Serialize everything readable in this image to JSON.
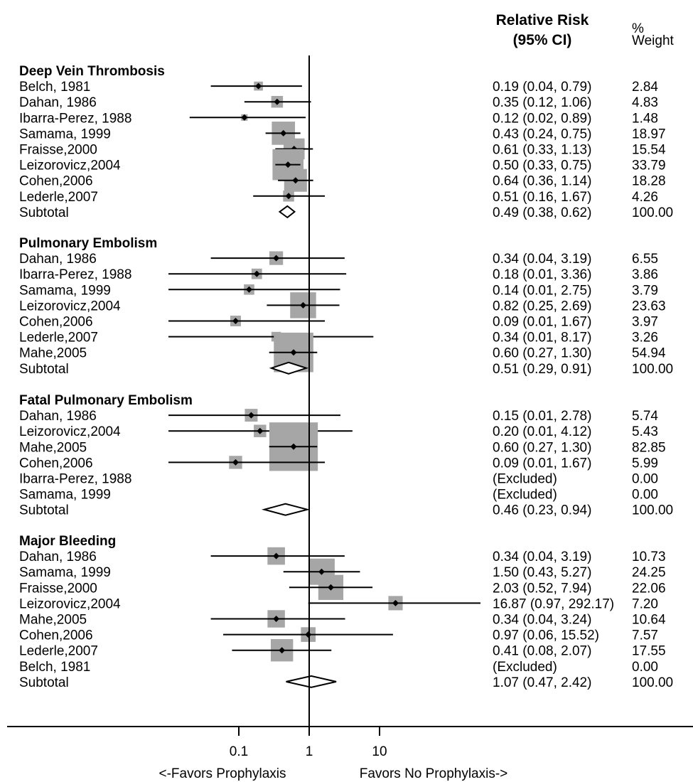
{
  "chart_data": {
    "type": "forest",
    "header": {
      "rr_line1": "Relative Risk",
      "rr_line2": "(95% CI)",
      "weight_line1": "%",
      "weight_line2": "Weight"
    },
    "x_axis": {
      "scale": "log",
      "range": [
        0.0167,
        19
      ],
      "ticks": [
        0.1,
        1,
        10
      ],
      "tick_labels": [
        "0.1",
        "1",
        "10"
      ],
      "reference_line": 1,
      "left_caption": "<-Favors Prophylaxis",
      "right_caption": "Favors No Prophylaxis->"
    },
    "groups": [
      {
        "title": "Deep Vein Thrombosis",
        "rows": [
          {
            "label": "Belch, 1981",
            "rr": 0.19,
            "lo": 0.04,
            "hi": 0.79,
            "ci_text": "0.19 (0.04, 0.79)",
            "weight": 2.84,
            "weight_text": "2.84"
          },
          {
            "label": "Dahan, 1986",
            "rr": 0.35,
            "lo": 0.12,
            "hi": 1.06,
            "ci_text": "0.35 (0.12, 1.06)",
            "weight": 4.83,
            "weight_text": "4.83"
          },
          {
            "label": "Ibarra-Perez, 1988",
            "rr": 0.12,
            "lo": 0.02,
            "hi": 0.89,
            "ci_text": "0.12 (0.02, 0.89)",
            "weight": 1.48,
            "weight_text": "1.48"
          },
          {
            "label": "Samama, 1999",
            "rr": 0.43,
            "lo": 0.24,
            "hi": 0.75,
            "ci_text": "0.43 (0.24, 0.75)",
            "weight": 18.97,
            "weight_text": "18.97"
          },
          {
            "label": "Fraisse,2000",
            "rr": 0.61,
            "lo": 0.33,
            "hi": 1.13,
            "ci_text": "0.61 (0.33, 1.13)",
            "weight": 15.54,
            "weight_text": "15.54"
          },
          {
            "label": "Leizorovicz,2004",
            "rr": 0.5,
            "lo": 0.33,
            "hi": 0.75,
            "ci_text": "0.50 (0.33, 0.75)",
            "weight": 33.79,
            "weight_text": "33.79"
          },
          {
            "label": "Cohen,2006",
            "rr": 0.64,
            "lo": 0.36,
            "hi": 1.14,
            "ci_text": "0.64 (0.36, 1.14)",
            "weight": 18.28,
            "weight_text": "18.28"
          },
          {
            "label": "Lederle,2007",
            "rr": 0.51,
            "lo": 0.16,
            "hi": 1.67,
            "ci_text": "0.51 (0.16, 1.67)",
            "weight": 4.26,
            "weight_text": "4.26"
          }
        ],
        "subtotal": {
          "label": "Subtotal",
          "rr": 0.49,
          "lo": 0.38,
          "hi": 0.62,
          "ci_text": "0.49 (0.38, 0.62)",
          "weight_text": "100.00"
        }
      },
      {
        "title": "Pulmonary Embolism",
        "rows": [
          {
            "label": "Dahan, 1986",
            "rr": 0.34,
            "lo": 0.04,
            "hi": 3.19,
            "ci_text": "0.34 (0.04, 3.19)",
            "weight": 6.55,
            "weight_text": "6.55"
          },
          {
            "label": "Ibarra-Perez, 1988",
            "rr": 0.18,
            "lo": 0.01,
            "hi": 3.36,
            "ci_text": "0.18 (0.01, 3.36)",
            "weight": 3.86,
            "weight_text": "3.86"
          },
          {
            "label": "Samama, 1999",
            "rr": 0.14,
            "lo": 0.01,
            "hi": 2.75,
            "ci_text": "0.14 (0.01, 2.75)",
            "weight": 3.79,
            "weight_text": "3.79"
          },
          {
            "label": "Leizorovicz,2004",
            "rr": 0.82,
            "lo": 0.25,
            "hi": 2.69,
            "ci_text": "0.82 (0.25, 2.69)",
            "weight": 23.63,
            "weight_text": "23.63"
          },
          {
            "label": "Cohen,2006",
            "rr": 0.09,
            "lo": 0.01,
            "hi": 1.67,
            "ci_text": "0.09 (0.01, 1.67)",
            "weight": 3.97,
            "weight_text": "3.97"
          },
          {
            "label": "Lederle,2007",
            "rr": 0.34,
            "lo": 0.01,
            "hi": 8.17,
            "ci_text": "0.34 (0.01, 8.17)",
            "weight": 3.26,
            "weight_text": "3.26"
          },
          {
            "label": "Mahe,2005",
            "rr": 0.6,
            "lo": 0.27,
            "hi": 1.3,
            "ci_text": "0.60 (0.27, 1.30)",
            "weight": 54.94,
            "weight_text": "54.94"
          }
        ],
        "subtotal": {
          "label": "Subtotal",
          "rr": 0.51,
          "lo": 0.29,
          "hi": 0.91,
          "ci_text": "0.51 (0.29, 0.91)",
          "weight_text": "100.00"
        }
      },
      {
        "title": "Fatal Pulmonary Embolism",
        "rows": [
          {
            "label": "Dahan, 1986",
            "rr": 0.15,
            "lo": 0.01,
            "hi": 2.78,
            "ci_text": "0.15 (0.01, 2.78)",
            "weight": 5.74,
            "weight_text": "5.74"
          },
          {
            "label": "Leizorovicz,2004",
            "rr": 0.2,
            "lo": 0.01,
            "hi": 4.12,
            "ci_text": "0.20 (0.01, 4.12)",
            "weight": 5.43,
            "weight_text": "5.43"
          },
          {
            "label": "Mahe,2005",
            "rr": 0.6,
            "lo": 0.27,
            "hi": 1.3,
            "ci_text": "0.60 (0.27, 1.30)",
            "weight": 82.85,
            "weight_text": "82.85"
          },
          {
            "label": "Cohen,2006",
            "rr": 0.09,
            "lo": 0.01,
            "hi": 1.67,
            "ci_text": "0.09 (0.01, 1.67)",
            "weight": 5.99,
            "weight_text": "5.99"
          },
          {
            "label": "Ibarra-Perez, 1988",
            "rr": null,
            "lo": null,
            "hi": null,
            "ci_text": "(Excluded)",
            "weight": 0,
            "weight_text": "0.00"
          },
          {
            "label": "Samama, 1999",
            "rr": null,
            "lo": null,
            "hi": null,
            "ci_text": "(Excluded)",
            "weight": 0,
            "weight_text": "0.00"
          }
        ],
        "subtotal": {
          "label": "Subtotal",
          "rr": 0.46,
          "lo": 0.23,
          "hi": 0.94,
          "ci_text": "0.46 (0.23, 0.94)",
          "weight_text": "100.00"
        }
      },
      {
        "title": "Major Bleeding",
        "rows": [
          {
            "label": "Dahan, 1986",
            "rr": 0.34,
            "lo": 0.04,
            "hi": 3.19,
            "ci_text": "0.34 (0.04, 3.19)",
            "weight": 10.73,
            "weight_text": "10.73"
          },
          {
            "label": "Samama, 1999",
            "rr": 1.5,
            "lo": 0.43,
            "hi": 5.27,
            "ci_text": "1.50 (0.43, 5.27)",
            "weight": 24.25,
            "weight_text": "24.25"
          },
          {
            "label": "Fraisse,2000",
            "rr": 2.03,
            "lo": 0.52,
            "hi": 7.94,
            "ci_text": "2.03 (0.52, 7.94)",
            "weight": 22.06,
            "weight_text": "22.06"
          },
          {
            "label": "Leizorovicz,2004",
            "rr": 16.87,
            "lo": 0.97,
            "hi": 292.17,
            "ci_text": "16.87 (0.97, 292.17)",
            "weight": 7.2,
            "weight_text": "7.20"
          },
          {
            "label": "Mahe,2005",
            "rr": 0.34,
            "lo": 0.04,
            "hi": 3.24,
            "ci_text": "0.34 (0.04, 3.24)",
            "weight": 10.64,
            "weight_text": "10.64"
          },
          {
            "label": "Cohen,2006",
            "rr": 0.97,
            "lo": 0.06,
            "hi": 15.52,
            "ci_text": "0.97 (0.06, 15.52)",
            "weight": 7.57,
            "weight_text": "7.57"
          },
          {
            "label": "Lederle,2007",
            "rr": 0.41,
            "lo": 0.08,
            "hi": 2.07,
            "ci_text": "0.41 (0.08, 2.07)",
            "weight": 17.55,
            "weight_text": "17.55"
          },
          {
            "label": "Belch, 1981",
            "rr": null,
            "lo": null,
            "hi": null,
            "ci_text": "(Excluded)",
            "weight": 0,
            "weight_text": "0.00"
          }
        ],
        "subtotal": {
          "label": "Subtotal",
          "rr": 1.07,
          "lo": 0.47,
          "hi": 2.42,
          "ci_text": "1.07 (0.47, 2.42)",
          "weight_text": "100.00"
        }
      }
    ]
  }
}
